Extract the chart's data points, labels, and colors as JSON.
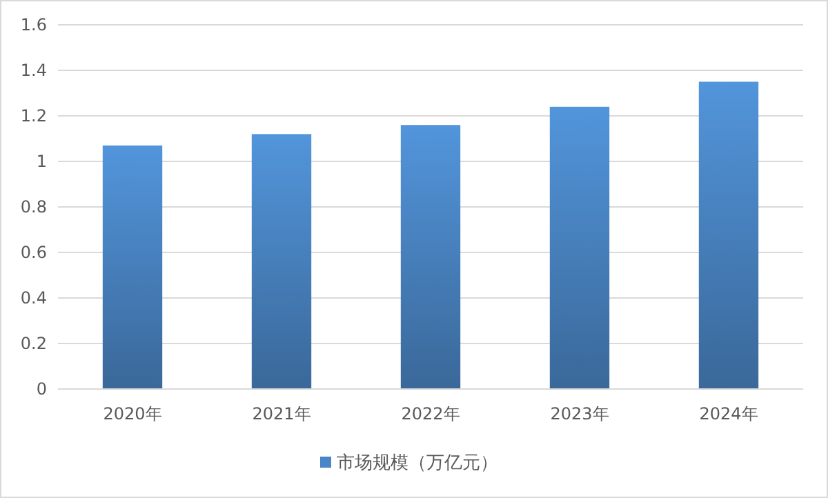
{
  "chart_data": {
    "type": "bar",
    "categories": [
      "2020年",
      "2021年",
      "2022年",
      "2023年",
      "2024年"
    ],
    "series": [
      {
        "name": "市场规模（万亿元）",
        "color": "#4a86c5",
        "values": [
          1.07,
          1.12,
          1.16,
          1.24,
          1.35
        ]
      }
    ],
    "ylim": [
      0,
      1.6
    ],
    "yticks": [
      0,
      0.2,
      0.4,
      0.6,
      0.8,
      1,
      1.2,
      1.4,
      1.6
    ],
    "grid": "y",
    "legend": "bottom"
  }
}
